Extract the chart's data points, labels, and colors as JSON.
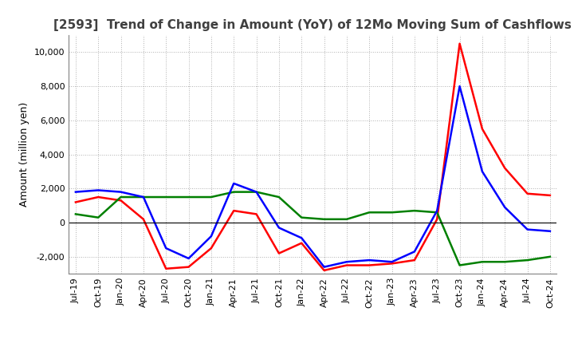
{
  "title": "[2593]  Trend of Change in Amount (YoY) of 12Mo Moving Sum of Cashflows",
  "ylabel": "Amount (million yen)",
  "ylim": [
    -3000,
    11000
  ],
  "yticks": [
    -2000,
    0,
    2000,
    4000,
    6000,
    8000,
    10000
  ],
  "x_labels": [
    "Jul-19",
    "Oct-19",
    "Jan-20",
    "Apr-20",
    "Jul-20",
    "Oct-20",
    "Jan-21",
    "Apr-21",
    "Jul-21",
    "Oct-21",
    "Jan-22",
    "Apr-22",
    "Jul-22",
    "Oct-22",
    "Jan-23",
    "Apr-23",
    "Jul-23",
    "Oct-23",
    "Jan-24",
    "Apr-24",
    "Jul-24",
    "Oct-24"
  ],
  "operating": [
    1200,
    1500,
    1300,
    200,
    -2700,
    -2600,
    -1500,
    700,
    500,
    -1800,
    -1200,
    -2800,
    -2500,
    -2500,
    -2400,
    -2200,
    200,
    10500,
    5500,
    3200,
    1700,
    1600
  ],
  "investing": [
    500,
    300,
    1500,
    1500,
    1500,
    1500,
    1500,
    1800,
    1800,
    1500,
    300,
    200,
    200,
    600,
    600,
    700,
    600,
    -2500,
    -2300,
    -2300,
    -2200,
    -2000
  ],
  "free": [
    1800,
    1900,
    1800,
    1500,
    -1500,
    -2100,
    -800,
    2300,
    1800,
    -300,
    -900,
    -2600,
    -2300,
    -2200,
    -2300,
    -1700,
    700,
    8000,
    3000,
    900,
    -400,
    -500
  ],
  "operating_color": "#ff0000",
  "investing_color": "#008000",
  "free_color": "#0000ff",
  "background_color": "#ffffff",
  "grid_color": "#b0b0b0",
  "title_color": "#404040",
  "title_fontsize": 11,
  "axis_fontsize": 8,
  "ylabel_fontsize": 9,
  "legend_fontsize": 9,
  "linewidth": 1.8
}
